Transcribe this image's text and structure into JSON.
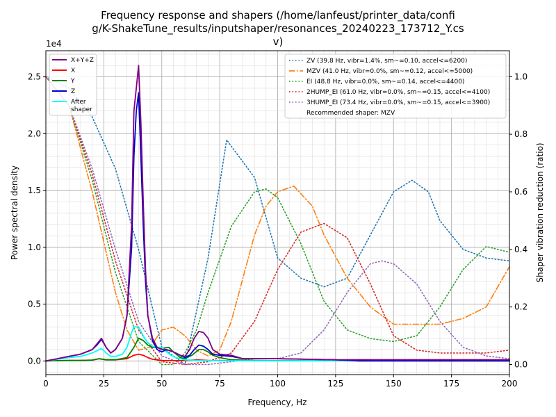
{
  "chart_data": {
    "type": "line",
    "title_lines": [
      "Frequency response and shapers (/home/lanfeust/printer_data/confi",
      "g/K-ShakeTune_results/inputshaper/resonances_20240223_173712_Y.cs",
      "v)"
    ],
    "xlabel": "Frequency, Hz",
    "ylabel": "Power spectral density",
    "y2label": "Shaper vibration reduction (ratio)",
    "y_exponent_label": "1e4",
    "xlim": [
      0,
      200
    ],
    "ylim": [
      -0.12,
      2.73
    ],
    "y2lim": [
      -0.035,
      1.09
    ],
    "xticks": [
      0,
      25,
      50,
      75,
      100,
      125,
      150,
      175,
      200
    ],
    "xtick_labels": [
      "0",
      "25",
      "50",
      "75",
      "100",
      "125",
      "150",
      "175",
      "200"
    ],
    "yticks": [
      0.0,
      0.5,
      1.0,
      1.5,
      2.0,
      2.5
    ],
    "ytick_labels": [
      "0.0",
      "0.5",
      "1.0",
      "1.5",
      "2.0",
      "2.5"
    ],
    "y2ticks": [
      0.0,
      0.2,
      0.4,
      0.6,
      0.8,
      1.0
    ],
    "y2tick_labels": [
      "0.0",
      "0.2",
      "0.4",
      "0.6",
      "0.8",
      "1.0"
    ],
    "grid": true,
    "legend_left_placement": "top-left",
    "legend_right_placement": "top-right",
    "series": [
      {
        "name": "X+Y+Z",
        "color": "#800080",
        "axis": "left",
        "style": "solid",
        "x": [
          0,
          5,
          10,
          15,
          20,
          22,
          24,
          26,
          28,
          30,
          33,
          35,
          37,
          38,
          39,
          40,
          41,
          42,
          43,
          44,
          46,
          48,
          50,
          52,
          55,
          58,
          60,
          62,
          64,
          66,
          68,
          70,
          72,
          75,
          80,
          85,
          90,
          100,
          125,
          150,
          175,
          200
        ],
        "y": [
          0,
          0.02,
          0.04,
          0.06,
          0.1,
          0.15,
          0.2,
          0.12,
          0.07,
          0.1,
          0.2,
          0.4,
          1.2,
          2.2,
          2.4,
          2.6,
          2.1,
          1.4,
          0.8,
          0.4,
          0.2,
          0.12,
          0.1,
          0.1,
          0.08,
          0.05,
          0.04,
          0.1,
          0.2,
          0.26,
          0.25,
          0.2,
          0.1,
          0.06,
          0.05,
          0.02,
          0.02,
          0.02,
          0.01,
          0.01,
          0.01,
          0.01
        ]
      },
      {
        "name": "X",
        "color": "#ff0000",
        "axis": "left",
        "style": "solid",
        "x": [
          0,
          5,
          10,
          15,
          20,
          23,
          26,
          30,
          35,
          38,
          40,
          42,
          44,
          46,
          48,
          50,
          55,
          60,
          65,
          70,
          80,
          100,
          200
        ],
        "y": [
          0,
          0.003,
          0.005,
          0.005,
          0.008,
          0.02,
          0.01,
          0.01,
          0.02,
          0.05,
          0.06,
          0.05,
          0.03,
          0.015,
          0.01,
          0.005,
          0.003,
          0.003,
          0.01,
          0.005,
          0.003,
          0.002,
          0.001
        ]
      },
      {
        "name": "Y",
        "color": "#008000",
        "axis": "left",
        "style": "solid",
        "x": [
          0,
          5,
          10,
          15,
          20,
          23,
          26,
          30,
          35,
          38,
          40,
          42,
          44,
          46,
          48,
          50,
          53,
          55,
          58,
          60,
          63,
          66,
          68,
          70,
          72,
          75,
          80,
          90,
          100,
          200
        ],
        "y": [
          0,
          0.003,
          0.005,
          0.005,
          0.008,
          0.02,
          0.01,
          0.01,
          0.03,
          0.12,
          0.2,
          0.18,
          0.14,
          0.12,
          0.12,
          0.11,
          0.12,
          0.08,
          0.03,
          0.02,
          0.05,
          0.1,
          0.1,
          0.08,
          0.05,
          0.03,
          0.01,
          0.005,
          0.003,
          0.001
        ]
      },
      {
        "name": "Z",
        "color": "#0000cc",
        "axis": "left",
        "style": "solid",
        "x": [
          0,
          5,
          10,
          15,
          20,
          22,
          24,
          26,
          28,
          30,
          33,
          35,
          37,
          38,
          39,
          40,
          41,
          42,
          43,
          44,
          46,
          48,
          50,
          52,
          55,
          58,
          60,
          62,
          64,
          66,
          68,
          70,
          72,
          75,
          80,
          85,
          90,
          100,
          125,
          135,
          150,
          175,
          200
        ],
        "y": [
          0,
          0.02,
          0.04,
          0.06,
          0.1,
          0.14,
          0.19,
          0.12,
          0.07,
          0.1,
          0.2,
          0.4,
          1.0,
          1.8,
          2.2,
          2.36,
          1.8,
          1.2,
          0.7,
          0.4,
          0.18,
          0.1,
          0.08,
          0.1,
          0.08,
          0.05,
          0.03,
          0.05,
          0.1,
          0.14,
          0.13,
          0.1,
          0.06,
          0.05,
          0.04,
          0.02,
          0.02,
          0.02,
          0.01,
          0.0,
          0.0,
          0.0,
          0.0
        ]
      },
      {
        "name": "After\nshaper",
        "color": "#00ffff",
        "axis": "left",
        "style": "solid",
        "x": [
          0,
          5,
          10,
          15,
          20,
          22,
          24,
          26,
          28,
          30,
          33,
          35,
          37,
          38,
          40,
          42,
          44,
          46,
          48,
          50,
          52,
          54,
          56,
          58,
          60,
          65,
          70,
          80,
          100,
          150,
          200
        ],
        "y": [
          0,
          0.015,
          0.03,
          0.04,
          0.07,
          0.09,
          0.11,
          0.07,
          0.04,
          0.04,
          0.06,
          0.12,
          0.25,
          0.3,
          0.3,
          0.22,
          0.16,
          0.13,
          0.12,
          0.12,
          0.08,
          0.05,
          0.03,
          0.02,
          0.01,
          0.005,
          0.003,
          0.002,
          0.001,
          0.001,
          0.001
        ]
      },
      {
        "name": "ZV (39.8 Hz, vibr=1.4%, sm~=0.10, accel<=6200)",
        "color": "#1f77b4",
        "axis": "right",
        "style": "dotted",
        "x": [
          0,
          10,
          20,
          30,
          40,
          50,
          60,
          70,
          78,
          90,
          100,
          110,
          120,
          130,
          140,
          150,
          158,
          165,
          170,
          180,
          190,
          200
        ],
        "y": [
          1.0,
          0.96,
          0.86,
          0.68,
          0.4,
          0.06,
          0.0,
          0.37,
          0.78,
          0.65,
          0.37,
          0.3,
          0.27,
          0.3,
          0.45,
          0.6,
          0.64,
          0.6,
          0.5,
          0.4,
          0.37,
          0.36
        ]
      },
      {
        "name": "MZV (41.0 Hz, vibr=0.0%, sm~=0.12, accel<=5000)",
        "color": "#ff7f0e",
        "axis": "right",
        "style": "dashdot",
        "x": [
          0,
          10,
          20,
          30,
          35,
          40,
          45,
          50,
          55,
          60,
          65,
          70,
          75,
          80,
          85,
          90,
          95,
          100,
          107,
          115,
          120,
          130,
          140,
          150,
          160,
          170,
          180,
          190,
          200
        ],
        "y": [
          1.0,
          0.9,
          0.6,
          0.25,
          0.12,
          0.05,
          0.06,
          0.12,
          0.13,
          0.1,
          0.05,
          0.03,
          0.05,
          0.15,
          0.3,
          0.45,
          0.55,
          0.6,
          0.62,
          0.55,
          0.45,
          0.3,
          0.2,
          0.14,
          0.14,
          0.14,
          0.16,
          0.2,
          0.34
        ]
      },
      {
        "name": "EI (48.8 Hz, vibr=0.0%, sm~=0.14, accel<=4400)",
        "color": "#2ca02c",
        "axis": "right",
        "style": "dotted",
        "x": [
          0,
          10,
          20,
          30,
          40,
          50,
          55,
          60,
          65,
          70,
          80,
          90,
          95,
          100,
          110,
          120,
          130,
          140,
          150,
          160,
          170,
          180,
          190,
          200
        ],
        "y": [
          1.0,
          0.9,
          0.64,
          0.32,
          0.08,
          0.0,
          0.0,
          0.04,
          0.12,
          0.25,
          0.48,
          0.6,
          0.61,
          0.58,
          0.42,
          0.22,
          0.12,
          0.09,
          0.08,
          0.1,
          0.2,
          0.33,
          0.41,
          0.39
        ]
      },
      {
        "name": "2HUMP_EI (61.0 Hz, vibr=0.0%, sm~=0.15, accel<=4100)",
        "color": "#d62728",
        "axis": "right",
        "style": "dotted",
        "x": [
          0,
          10,
          20,
          30,
          40,
          50,
          60,
          70,
          80,
          90,
          100,
          110,
          120,
          130,
          140,
          150,
          160,
          170,
          180,
          190,
          200
        ],
        "y": [
          1.0,
          0.9,
          0.66,
          0.36,
          0.12,
          0.01,
          0.0,
          0.01,
          0.04,
          0.15,
          0.33,
          0.46,
          0.49,
          0.44,
          0.28,
          0.1,
          0.05,
          0.04,
          0.04,
          0.04,
          0.05
        ]
      },
      {
        "name": "3HUMP_EI (73.4 Hz, vibr=0.0%, sm~=0.15, accel<=3900)",
        "color": "#9467bd",
        "axis": "right",
        "style": "dotted",
        "x": [
          0,
          10,
          20,
          30,
          40,
          50,
          60,
          70,
          80,
          90,
          100,
          110,
          120,
          130,
          140,
          145,
          150,
          160,
          170,
          180,
          190,
          200
        ],
        "y": [
          1.0,
          0.9,
          0.68,
          0.4,
          0.15,
          0.03,
          0.0,
          0.0,
          0.01,
          0.02,
          0.02,
          0.04,
          0.12,
          0.25,
          0.35,
          0.36,
          0.35,
          0.28,
          0.15,
          0.06,
          0.03,
          0.02
        ]
      }
    ],
    "recommended_text": "Recommended shaper: MZV"
  }
}
